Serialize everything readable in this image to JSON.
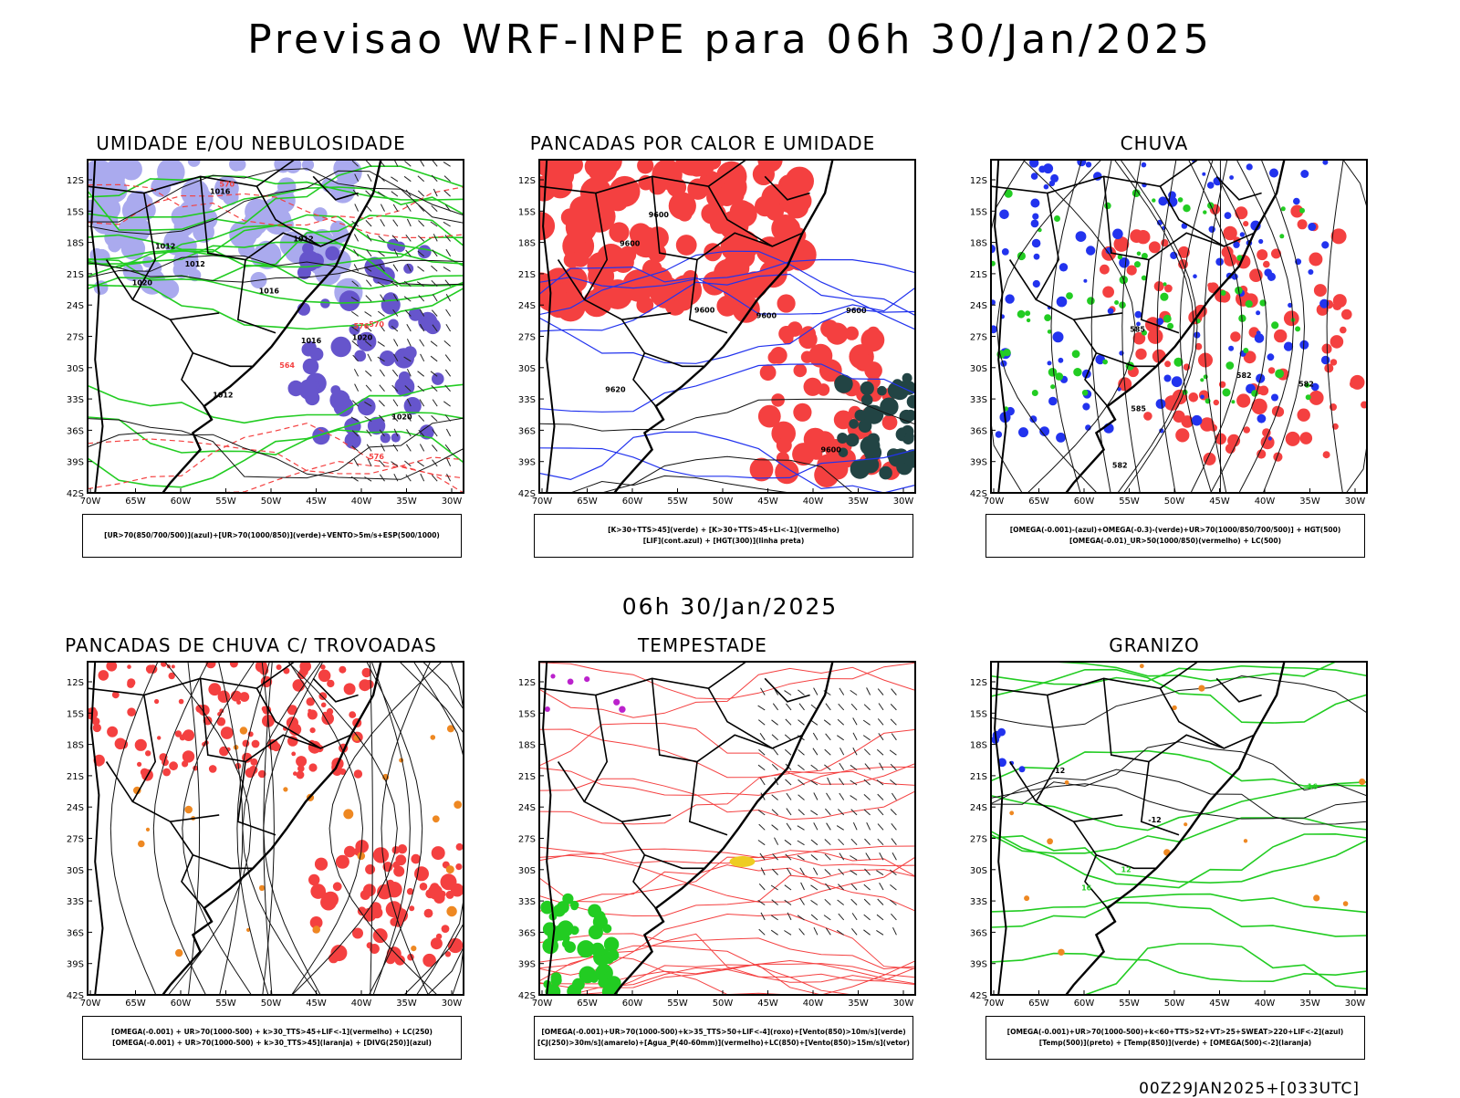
{
  "title": "Previsao WRF-INPE  para 06h 30/Jan/2025",
  "mid_title": "06h 30/Jan/2025",
  "footer": "00Z29JAN2025+[033UTC]",
  "axes": {
    "lat_labels": [
      "12S",
      "15S",
      "18S",
      "21S",
      "24S",
      "27S",
      "30S",
      "33S",
      "36S",
      "39S",
      "42S"
    ],
    "lon_labels": [
      "70W",
      "65W",
      "60W",
      "55W",
      "50W",
      "45W",
      "40W",
      "35W",
      "30W"
    ]
  },
  "colors": {
    "red": "#f44040",
    "green": "#22cc22",
    "blue": "#2233ee",
    "lightblue": "#aaaaee",
    "purple": "#6655cc",
    "darkteal": "#224444",
    "orange": "#ee8822",
    "yellow": "#eecc22",
    "magenta": "#bb22cc"
  },
  "panels": [
    {
      "id": "umidade",
      "title": "UMIDADE E/OU NEBULOSIDADE",
      "legend": [
        "[UR>70(850/700/500)](azul)+[UR>70(1000/850)](verde)+VENTO>5m/s+ESP(500/1000)"
      ],
      "contour_labels": [
        "1012",
        "1012",
        "1016",
        "1016",
        "1012",
        "1012",
        "1020",
        "1016",
        "1020",
        "1020",
        "570",
        "576",
        "576",
        "570",
        "564"
      ]
    },
    {
      "id": "pancadas-calor",
      "title": "PANCADAS POR CALOR E UMIDADE",
      "legend": [
        "[K>30+TTS>45](verde) + [K>30+TTS>45+LI<-1](vermelho)",
        "[LIF](cont.azul) + [HGT(300)](linha preta)"
      ],
      "contour_labels": [
        "9600",
        "9600",
        "9600",
        "9600",
        "9620",
        "9600",
        "9600"
      ]
    },
    {
      "id": "chuva",
      "title": "CHUVA",
      "legend": [
        "[OMEGA(-0.001)-(azul)+OMEGA(-0.3)-(verde)+UR>70(1000/850/700/500)] + HGT(500)",
        "[OMEGA(-0.01)_UR>50(1000/850)(vermelho) + LC(500)"
      ],
      "contour_labels": [
        "582",
        "582",
        "585",
        "585",
        "582"
      ]
    },
    {
      "id": "trovoadas",
      "title": "PANCADAS DE CHUVA C/ TROVOADAS",
      "legend": [
        "[OMEGA(-0.001) + UR>70(1000-500) + k>30_TTS>45+LIF<-1](vermelho) + LC(250)",
        "[OMEGA(-0.001) + UR>70(1000-500) + k>30_TTS>45](laranja) + [DIVG(250)](azul)"
      ],
      "contour_labels": []
    },
    {
      "id": "tempestade",
      "title": "TEMPESTADE",
      "legend": [
        "[OMEGA(-0.001)+UR>70(1000-500)+k>35_TTS>50+LIF<-4](roxo)+[Vento(850)>10m/s](verde)",
        "[CJ(250)>30m/s](amarelo)+[Agua_P(40-60mm)](vermelho)+LC(850)+[Vento(850)>15m/s](vetor)"
      ],
      "contour_labels": []
    },
    {
      "id": "granizo",
      "title": "GRANIZO",
      "legend": [
        "[OMEGA(-0.001)+UR>70(1000-500)+k<60+TTS>52+VT>25+SWEAT>220+LIF<-2](azul)",
        "[Temp(500)](preto) + [Temp(850)](verde) + [OMEGA(500)<-2](laranja)"
      ],
      "contour_labels": [
        "-12",
        "-12",
        "16",
        "16",
        "12"
      ]
    }
  ]
}
